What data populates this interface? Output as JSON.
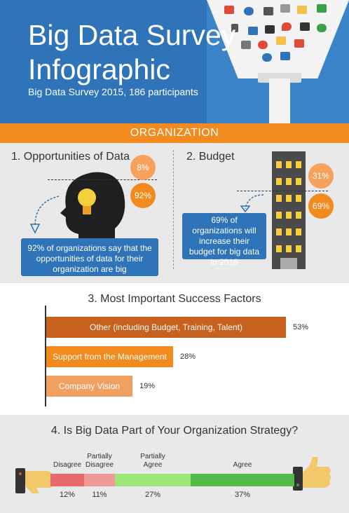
{
  "header": {
    "title_line1": "Big Data Survey",
    "title_line2": "Infographic",
    "subtitle": "Big Data Survey 2015, 186 participants"
  },
  "organization": {
    "label": "ORGANIZATION"
  },
  "opportunities": {
    "title": "1. Opportunities of Data",
    "pct_top": "8%",
    "pct_bottom": "92%",
    "callout": "92% of organizations say that the opportunities of data for their organization are big"
  },
  "budget": {
    "title": "2. Budget",
    "pct_top": "31%",
    "pct_bottom": "69%",
    "callout": "69% of organizations will increase their budget for big data in 2016"
  },
  "success": {
    "title": "3. Most Important Success Factors"
  },
  "strategy": {
    "title": "4. Is Big Data Part of Your Organization Strategy?"
  },
  "colors": {
    "blue": "#2f73b8",
    "orange": "#f28a1e",
    "bar1": "#c8601e",
    "bar2": "#f28a1e",
    "bar3": "#f0a060",
    "disagree": "#e96a6a",
    "partially_disagree": "#ef9a9a",
    "partially_agree": "#9ee67a",
    "agree": "#55b94a"
  },
  "chart_data": [
    {
      "type": "bar",
      "orientation": "horizontal",
      "title": "3. Most Important Success Factors",
      "categories": [
        "Other (including Budget, Training, Talent)",
        "Support from the Management",
        "Company Vision"
      ],
      "values": [
        53,
        28,
        19
      ],
      "value_labels": [
        "53%",
        "28%",
        "19%"
      ],
      "unit": "%"
    },
    {
      "type": "bar",
      "orientation": "stacked-horizontal",
      "title": "4. Is Big Data Part of Your Organization Strategy?",
      "categories": [
        "Disagree",
        "Partially Disagree",
        "Partially Agree",
        "Agree"
      ],
      "category_lines": [
        [
          "Disagree"
        ],
        [
          "Partially",
          "Disagree"
        ],
        [
          "Partially",
          "Agree"
        ],
        [
          "Agree"
        ]
      ],
      "values": [
        12,
        11,
        27,
        37
      ],
      "value_labels": [
        "12%",
        "11%",
        "27%",
        "37%"
      ],
      "unit": "%"
    }
  ]
}
